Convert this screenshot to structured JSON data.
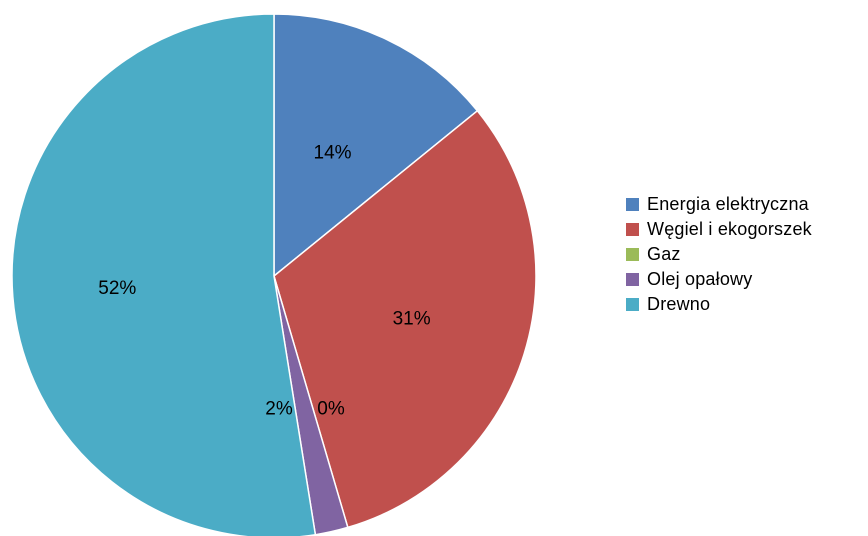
{
  "chart_data": {
    "type": "pie",
    "categories": [
      "Energia elektryczna",
      "Węgiel i ekogorszek",
      "Gaz",
      "Olej opałowy",
      "Drewno"
    ],
    "values": [
      14,
      31,
      0,
      2,
      52
    ],
    "data_labels": [
      "14%",
      "31%",
      "0%",
      "2%",
      "52%"
    ],
    "colors": [
      "#4F81BD",
      "#C0504D",
      "#9BBB59",
      "#8064A2",
      "#4BACC6"
    ],
    "start_angle_deg": 0,
    "direction": "clockwise",
    "legend_position": "right"
  }
}
